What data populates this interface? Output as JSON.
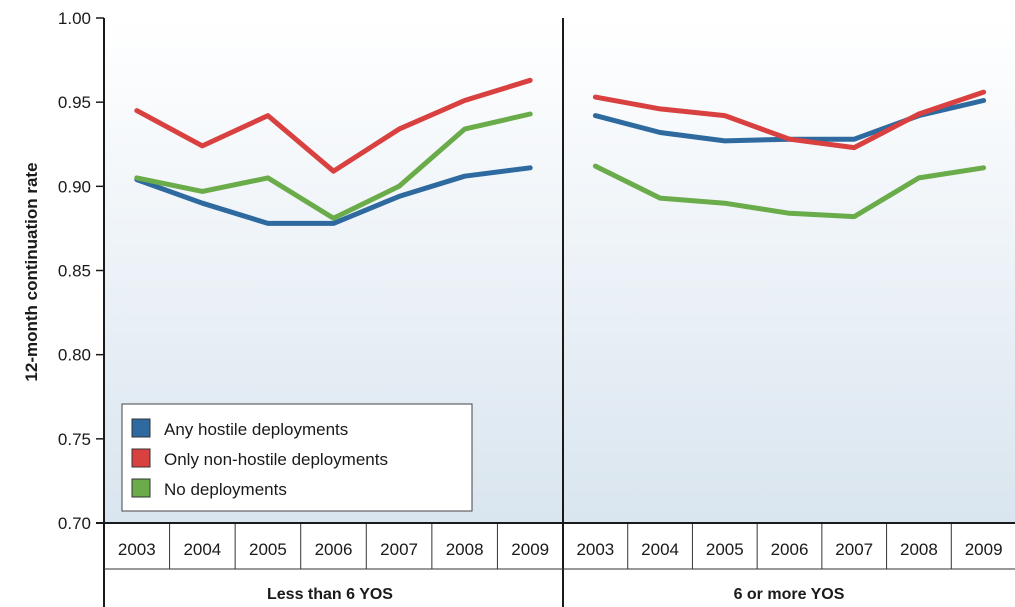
{
  "chart_data": {
    "type": "line",
    "ylabel": "12-month continuation rate",
    "ylim": [
      0.7,
      1.0
    ],
    "yticks": [
      "0.70",
      "0.75",
      "0.80",
      "0.85",
      "0.90",
      "0.95",
      "1.00"
    ],
    "grid": false,
    "legend_position": "bottom-left of first panel",
    "panels": [
      {
        "label": "Less than 6 YOS",
        "categories": [
          "2003",
          "2004",
          "2005",
          "2006",
          "2007",
          "2008",
          "2009"
        ],
        "series": [
          {
            "name": "Any hostile deployments",
            "color": "#2e6aa0",
            "values": [
              0.904,
              0.89,
              0.878,
              0.878,
              0.894,
              0.906,
              0.911
            ]
          },
          {
            "name": "Only non-hostile deployments",
            "color": "#d94040",
            "values": [
              0.945,
              0.924,
              0.942,
              0.909,
              0.934,
              0.951,
              0.963
            ]
          },
          {
            "name": "No deployments",
            "color": "#6aab4a",
            "values": [
              0.905,
              0.897,
              0.905,
              0.881,
              0.9,
              0.934,
              0.943
            ]
          }
        ]
      },
      {
        "label": "6 or more YOS",
        "categories": [
          "2003",
          "2004",
          "2005",
          "2006",
          "2007",
          "2008",
          "2009"
        ],
        "series": [
          {
            "name": "Any hostile deployments",
            "color": "#2e6aa0",
            "values": [
              0.942,
              0.932,
              0.927,
              0.928,
              0.928,
              0.942,
              0.951
            ]
          },
          {
            "name": "Only non-hostile deployments",
            "color": "#d94040",
            "values": [
              0.953,
              0.946,
              0.942,
              0.928,
              0.923,
              0.943,
              0.956
            ]
          },
          {
            "name": "No deployments",
            "color": "#6aab4a",
            "values": [
              0.912,
              0.893,
              0.89,
              0.884,
              0.882,
              0.905,
              0.911
            ]
          }
        ]
      }
    ]
  }
}
